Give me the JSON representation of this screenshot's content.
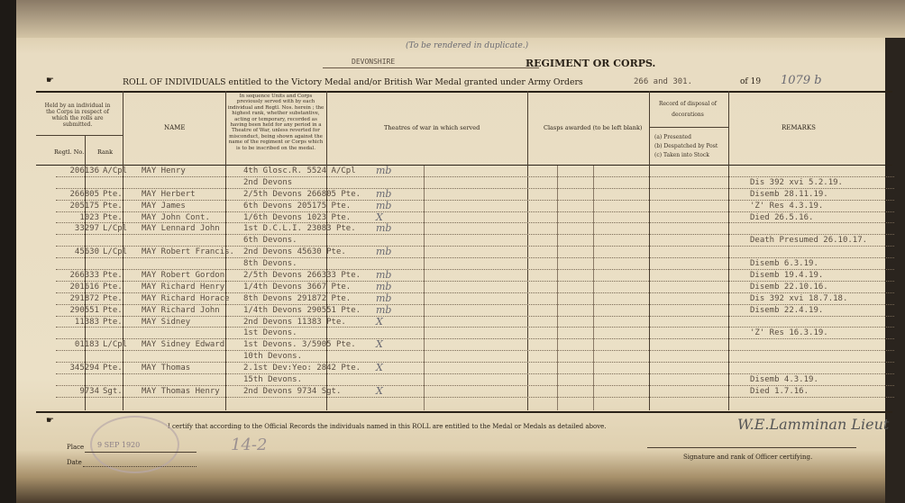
{
  "header": {
    "duplicate_note": "(To be rendered in duplicate.)",
    "regiment": "DEVONSHIRE",
    "regiment_label": "REGIMENT OR CORPS.",
    "roll_title": "ROLL OF INDIVIDUALS entitled to the Victory Medal and/or British War Medal granted under Army Orders",
    "army_orders": "266 and 301.",
    "of_label": "of 19",
    "roll_number": "1079 b"
  },
  "columns": {
    "held_by": "Held by an individual in the Corps in respect of which the rolls are submitted.",
    "regt_no": "Regtl. No.",
    "rank": "Rank",
    "name": "NAME",
    "corps": "In sequence Units and Corps previously served with by each individual and Regtl. Nos. herein ; the highest rank, whether substantive, acting or temporary, recorded as having been held for any period in a Theatre of War, unless reverted for misconduct, being shown against the name of the regiment or Corps which is to be inscribed on the medal.",
    "theatres": "Theatres of war in which served",
    "clasps": "Clasps awarded (to be left blank)",
    "record": "Record of disposal of decorations",
    "record_options": [
      "(a) Presented",
      "(b) Despatched by Post",
      "(c) Taken into Stock"
    ],
    "remarks": "REMARKS"
  },
  "rows": [
    {
      "no": "206136",
      "rank": "A/Cpl",
      "name": "MAY Henry",
      "corps": "4th Glosc.R. 5524 A/Cpl",
      "mark": "mb",
      "remarks": ""
    },
    {
      "no": "",
      "rank": "",
      "name": "",
      "corps": "2nd Devons",
      "mark": "",
      "remarks": "Dis 392 xvi 5.2.19."
    },
    {
      "no": "266805",
      "rank": "Pte.",
      "name": "MAY Herbert",
      "corps": "2/5th Devons 266805 Pte.",
      "mark": "mb",
      "remarks": "Disemb 28.11.19."
    },
    {
      "no": "205175",
      "rank": "Pte.",
      "name": "MAY James",
      "corps": "6th Devons 205175 Pte.",
      "mark": "mb",
      "remarks": "'Z' Res 4.3.19."
    },
    {
      "no": "1023",
      "rank": "Pte.",
      "name": "MAY John Cont.",
      "corps": "1/6th Devons 1023 Pte.",
      "mark": "X",
      "remarks": "Died 26.5.16."
    },
    {
      "no": "33297",
      "rank": "L/Cpl",
      "name": "MAY Lennard John",
      "corps": "1st D.C.L.I. 23083 Pte.",
      "mark": "mb",
      "remarks": ""
    },
    {
      "no": "",
      "rank": "",
      "name": "",
      "corps": "6th Devons.",
      "mark": "",
      "remarks": "Death Presumed 26.10.17."
    },
    {
      "no": "45630",
      "rank": "L/Cpl",
      "name": "MAY Robert Francis.",
      "corps": "2nd Devons 45630 Pte.",
      "mark": "mb",
      "remarks": ""
    },
    {
      "no": "",
      "rank": "",
      "name": "",
      "corps": "8th Devons.",
      "mark": "",
      "remarks": "Disemb 6.3.19."
    },
    {
      "no": "266333",
      "rank": "Pte.",
      "name": "MAY Robert Gordon",
      "corps": "2/5th Devons 266333 Pte.",
      "mark": "mb",
      "remarks": "Disemb 19.4.19."
    },
    {
      "no": "201616",
      "rank": "Pte.",
      "name": "MAY Richard Henry",
      "corps": "1/4th Devons 3667 Pte.",
      "mark": "mb",
      "remarks": "Disemb 22.10.16."
    },
    {
      "no": "291872",
      "rank": "Pte.",
      "name": "MAY Richard Horace",
      "corps": "8th Devons 291872 Pte.",
      "mark": "mb",
      "remarks": "Dis 392 xvi 18.7.18."
    },
    {
      "no": "290551",
      "rank": "Pte.",
      "name": "MAY Richard John",
      "corps": "1/4th Devons 290551 Pte.",
      "mark": "mb",
      "remarks": "Disemb 22.4.19."
    },
    {
      "no": "11383",
      "rank": "Pte.",
      "name": "MAY Sidney",
      "corps": "2nd Devons 11383 Pte.",
      "mark": "X",
      "remarks": ""
    },
    {
      "no": "",
      "rank": "",
      "name": "",
      "corps": "1st Devons.",
      "mark": "",
      "remarks": "'Z' Res 16.3.19."
    },
    {
      "no": "01183",
      "rank": "L/Cpl",
      "name": "MAY Sidney Edward",
      "corps": "1st Devons. 3/5905 Pte.",
      "mark": "X",
      "remarks": ""
    },
    {
      "no": "",
      "rank": "",
      "name": "",
      "corps": "10th Devons.",
      "mark": "",
      "remarks": ""
    },
    {
      "no": "345294",
      "rank": "Pte.",
      "name": "MAY Thomas",
      "corps": "2.1st Dev:Yeo: 2842 Pte.",
      "mark": "X",
      "remarks": ""
    },
    {
      "no": "",
      "rank": "",
      "name": "",
      "corps": "15th Devons.",
      "mark": "",
      "remarks": "Disemb 4.3.19."
    },
    {
      "no": "9734",
      "rank": "Sgt.",
      "name": "MAY Thomas Henry",
      "corps": "2nd Devons 9734 Sgt.",
      "mark": "X",
      "remarks": "Died 1.7.16."
    }
  ],
  "footer": {
    "certify": "I certify that according to the Official Records the individuals named in this ROLL are entitled to the Medal or Medals as detailed above.",
    "place_label": "Place",
    "stamp_date": "9 SEP 1920",
    "date_label": "Date",
    "pencil_note": "14-2",
    "signature": "W.E.Lamminan Lieut",
    "signature_label": "Signature and rank of Officer certifying."
  }
}
